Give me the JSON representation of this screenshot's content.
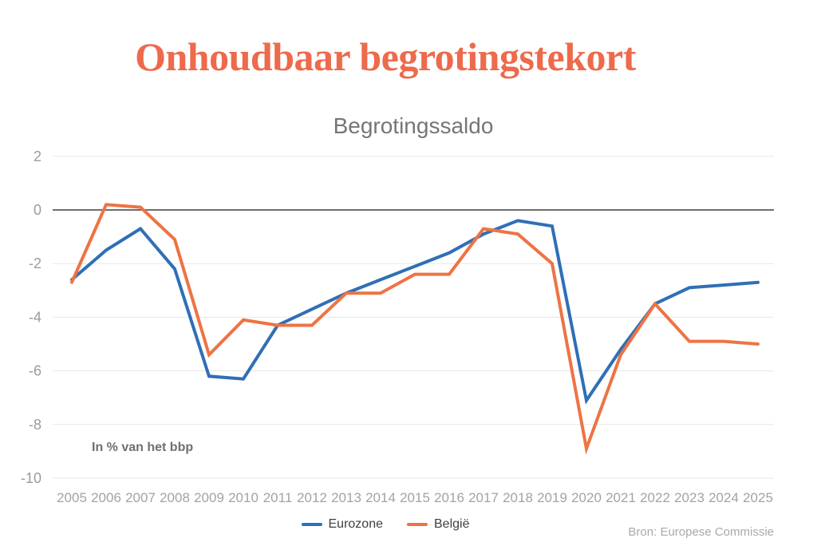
{
  "page": {
    "title": "Onhoudbaar begrotingstekort",
    "source": "Bron: Europese Commissie"
  },
  "chart_data": {
    "type": "line",
    "title": "Begrotingssaldo",
    "annotation": "In % van het bbp",
    "xlabel": "",
    "ylabel": "",
    "ylim": [
      -10,
      2
    ],
    "yticks": [
      2,
      0,
      -2,
      -4,
      -6,
      -8,
      -10
    ],
    "grid": true,
    "legend_position": "bottom",
    "categories": [
      "2005",
      "2006",
      "2007",
      "2008",
      "2009",
      "2010",
      "2011",
      "2012",
      "2013",
      "2014",
      "2015",
      "2016",
      "2017",
      "2018",
      "2019",
      "2020",
      "2021",
      "2022",
      "2023",
      "2024",
      "2025"
    ],
    "series": [
      {
        "name": "Eurozone",
        "color": "#2f6fb6",
        "values": [
          -2.6,
          -1.5,
          -0.7,
          -2.2,
          -6.2,
          -6.3,
          -4.3,
          -3.7,
          -3.1,
          -2.6,
          -2.1,
          -1.6,
          -0.9,
          -0.4,
          -0.6,
          -7.1,
          -5.2,
          -3.5,
          -2.9,
          -2.8,
          -2.7
        ]
      },
      {
        "name": "België",
        "color": "#ee7344",
        "values": [
          -2.7,
          0.2,
          0.1,
          -1.1,
          -5.4,
          -4.1,
          -4.3,
          -4.3,
          -3.1,
          -3.1,
          -2.4,
          -2.4,
          -0.7,
          -0.9,
          -2.0,
          -8.9,
          -5.4,
          -3.5,
          -4.9,
          -4.9,
          -5.0
        ]
      }
    ]
  }
}
